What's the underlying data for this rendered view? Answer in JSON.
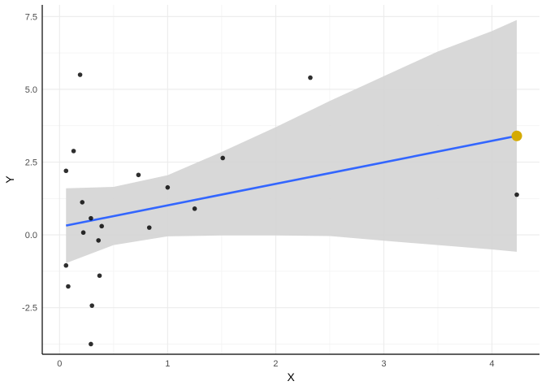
{
  "chart_data": {
    "type": "scatter",
    "xlabel": "X",
    "ylabel": "Y",
    "xlim": [
      -0.16,
      4.44
    ],
    "ylim": [
      -4.1,
      7.9
    ],
    "x_ticks": [
      0,
      1,
      2,
      3,
      4
    ],
    "y_ticks": [
      -2.5,
      0,
      2.5,
      5,
      7.5
    ],
    "x_tick_labels": [
      "0",
      "1",
      "2",
      "3",
      "4"
    ],
    "y_tick_labels": [
      "-2.5",
      "0.0",
      "2.5",
      "5.0",
      "7.5"
    ],
    "grid": true,
    "points": [
      {
        "x": 0.06,
        "y": 2.2
      },
      {
        "x": 0.06,
        "y": -1.05
      },
      {
        "x": 0.08,
        "y": -1.77
      },
      {
        "x": 0.13,
        "y": 2.88
      },
      {
        "x": 0.19,
        "y": 5.5
      },
      {
        "x": 0.21,
        "y": 1.12
      },
      {
        "x": 0.22,
        "y": 0.08
      },
      {
        "x": 0.29,
        "y": 0.57
      },
      {
        "x": 0.29,
        "y": -3.75
      },
      {
        "x": 0.3,
        "y": -2.43
      },
      {
        "x": 0.36,
        "y": -0.19
      },
      {
        "x": 0.37,
        "y": -1.4
      },
      {
        "x": 0.39,
        "y": 0.3
      },
      {
        "x": 0.73,
        "y": 2.06
      },
      {
        "x": 0.83,
        "y": 0.25
      },
      {
        "x": 1.0,
        "y": 1.63
      },
      {
        "x": 1.25,
        "y": 0.9
      },
      {
        "x": 1.51,
        "y": 2.64
      },
      {
        "x": 2.32,
        "y": 5.4
      },
      {
        "x": 4.23,
        "y": 1.38
      }
    ],
    "regression_line": {
      "x": [
        0.06,
        4.23
      ],
      "y": [
        0.32,
        3.4
      ],
      "color": "#3366ff"
    },
    "confidence_band": {
      "x": [
        0.06,
        0.5,
        1.0,
        1.5,
        2.0,
        2.5,
        3.0,
        3.5,
        4.0,
        4.23
      ],
      "upper": [
        1.6,
        1.65,
        2.05,
        2.85,
        3.7,
        4.6,
        5.45,
        6.3,
        7.0,
        7.38
      ],
      "lower": [
        -0.97,
        -0.35,
        -0.05,
        -0.02,
        -0.02,
        -0.04,
        -0.2,
        -0.35,
        -0.5,
        -0.58
      ],
      "color": "#d4d4d4"
    },
    "highlight_point": {
      "x": 4.23,
      "y": 3.4,
      "color": "#d4aa00"
    },
    "point_color": "#000000"
  }
}
